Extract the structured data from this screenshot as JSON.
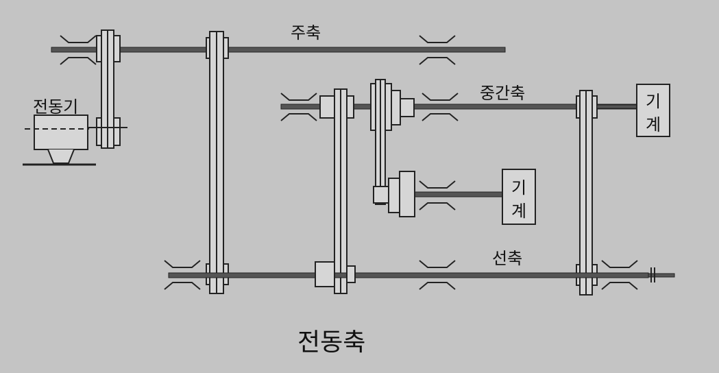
{
  "labels": {
    "main_shaft": "주축",
    "intermediate_shaft": "중간축",
    "line_shaft": "선축",
    "motor": "전동기",
    "machine_1": [
      "기",
      "계"
    ],
    "machine_2": [
      "기",
      "계"
    ]
  },
  "caption": "전동축",
  "colors": {
    "background": "#c4c4c4",
    "line": "#222222",
    "shaft": "#555555",
    "fill": "#d6d6d6"
  }
}
